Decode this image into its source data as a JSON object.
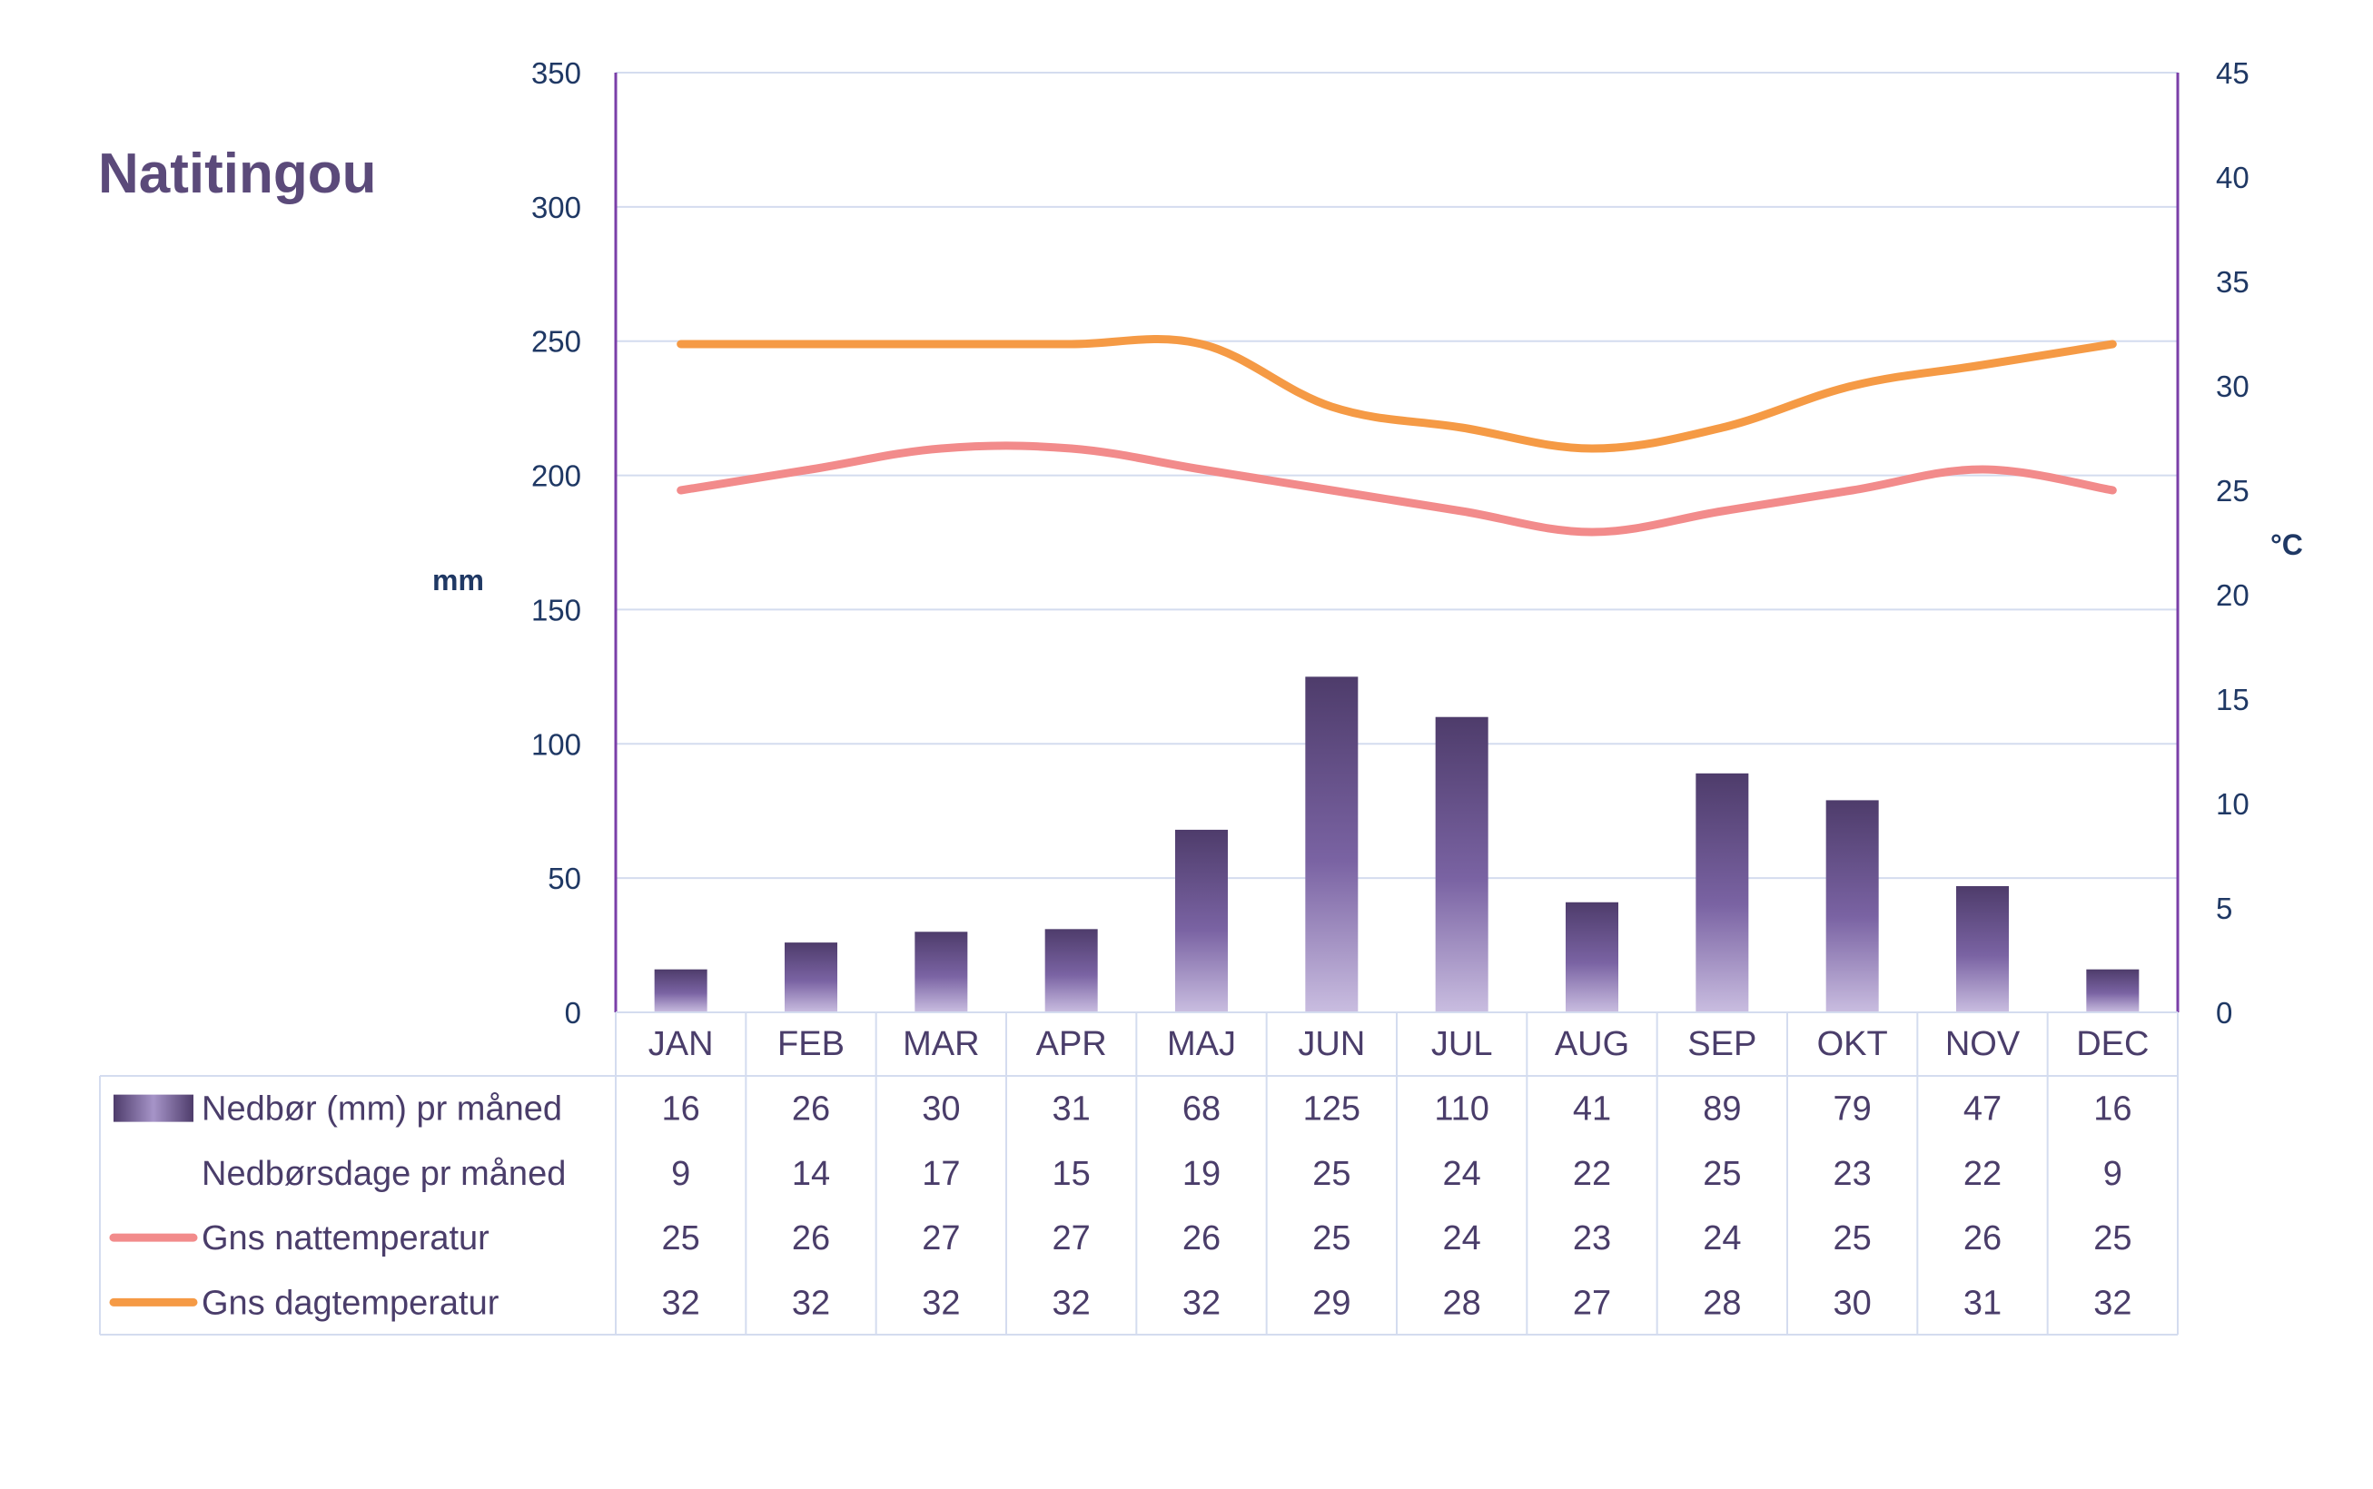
{
  "chart_data": {
    "type": "bar",
    "title": "Natitingou",
    "categories": [
      "JAN",
      "FEB",
      "MAR",
      "APR",
      "MAJ",
      "JUN",
      "JUL",
      "AUG",
      "SEP",
      "OKT",
      "NOV",
      "DEC"
    ],
    "y_left": {
      "label": "mm",
      "min": 0,
      "max": 350,
      "step": 50
    },
    "y_right": {
      "label": "°C",
      "min": 0,
      "max": 45,
      "step": 5
    },
    "grid": true,
    "series": [
      {
        "name": "Nedbør (mm) pr måned",
        "type": "bar",
        "axis": "left",
        "color": "#5a4a7e",
        "values": [
          16,
          26,
          30,
          31,
          68,
          125,
          110,
          41,
          89,
          79,
          47,
          16
        ]
      },
      {
        "name": "Nedbørsdage pr måned",
        "type": "table-only",
        "values": [
          9,
          14,
          17,
          15,
          19,
          25,
          24,
          22,
          25,
          23,
          22,
          9
        ]
      },
      {
        "name": "Gns nattemperatur",
        "type": "line",
        "axis": "right",
        "color": "#f28b8b",
        "values": [
          25,
          26,
          27,
          27,
          26,
          25,
          24,
          23,
          24,
          25,
          26,
          25
        ]
      },
      {
        "name": "Gns dagtemperatur",
        "type": "line",
        "axis": "right",
        "color": "#f59a45",
        "values": [
          32,
          32,
          32,
          32,
          32,
          29,
          28,
          27,
          28,
          30,
          31,
          32
        ]
      }
    ]
  }
}
